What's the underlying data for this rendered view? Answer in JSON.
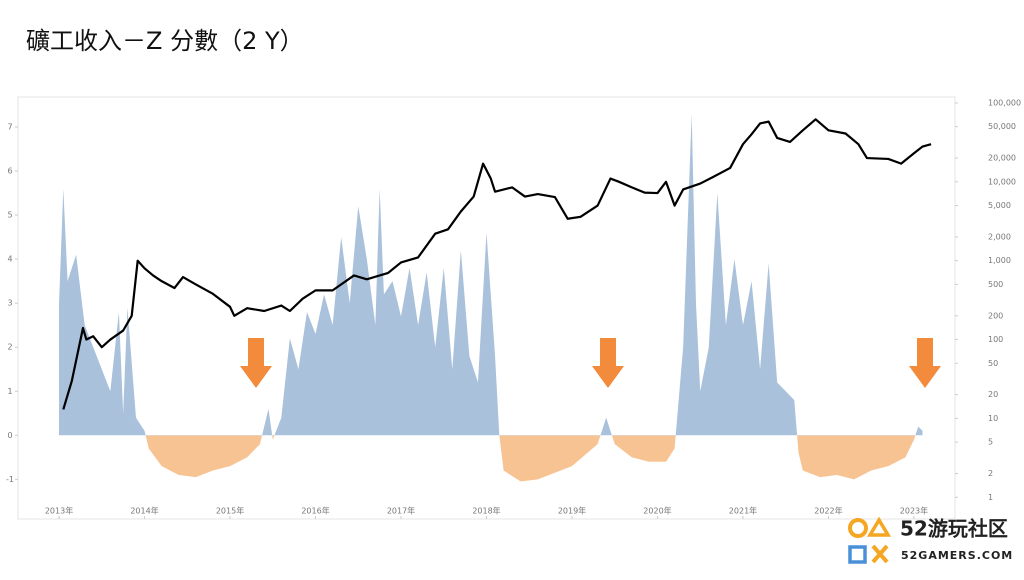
{
  "chart_data": {
    "type": "area-line",
    "title": "礦工收入－Z 分數（2 Y）",
    "xlim": [
      2012.52,
      2023.48
    ],
    "xticks": [
      {
        "value": 2013,
        "label": "2013年"
      },
      {
        "value": 2014,
        "label": "2014年"
      },
      {
        "value": 2015,
        "label": "2015年"
      },
      {
        "value": 2016,
        "label": "2016年"
      },
      {
        "value": 2017,
        "label": "2017年"
      },
      {
        "value": 2018,
        "label": "2018年"
      },
      {
        "value": 2019,
        "label": "2019年"
      },
      {
        "value": 2020,
        "label": "2020年"
      },
      {
        "value": 2021,
        "label": "2021年"
      },
      {
        "value": 2022,
        "label": "2022年"
      },
      {
        "value": 2023,
        "label": "2023年"
      }
    ],
    "ylim": [
      -1.9,
      7.68
    ],
    "yticks": [
      -1,
      0,
      1,
      2,
      3,
      4,
      5,
      6,
      7
    ],
    "y2lim": [
      0.53,
      119000
    ],
    "y2scale": "log",
    "y2ticks": [
      1,
      2,
      5,
      10,
      20,
      50,
      100,
      200,
      500,
      {
        "value": 1000,
        "label": "1,000"
      },
      {
        "value": 2000,
        "label": "2,000"
      },
      {
        "value": 5000,
        "label": "5,000"
      },
      {
        "value": 10000,
        "label": "10,000"
      },
      {
        "value": 20000,
        "label": "20,000"
      },
      {
        "value": 50000,
        "label": "50,000"
      },
      {
        "value": 100000,
        "label": "100,000"
      }
    ],
    "grid": false,
    "series": [
      {
        "type": "area",
        "positive_color": "#a9c1da",
        "negative_color": "#f7c393",
        "x": [
          2013.0,
          2013.05,
          2013.1,
          2013.2,
          2013.3,
          2013.4,
          2013.5,
          2013.6,
          2013.7,
          2013.75,
          2013.8,
          2013.9,
          2014.0,
          2014.05,
          2014.2,
          2014.4,
          2014.6,
          2014.8,
          2015.0,
          2015.2,
          2015.35,
          2015.45,
          2015.5,
          2015.6,
          2015.7,
          2015.8,
          2015.9,
          2016.0,
          2016.1,
          2016.2,
          2016.3,
          2016.4,
          2016.5,
          2016.6,
          2016.7,
          2016.75,
          2016.8,
          2016.9,
          2017.0,
          2017.1,
          2017.2,
          2017.3,
          2017.4,
          2017.5,
          2017.6,
          2017.7,
          2017.8,
          2017.9,
          2018.0,
          2018.1,
          2018.15,
          2018.2,
          2018.4,
          2018.6,
          2018.8,
          2019.0,
          2019.3,
          2019.4,
          2019.5,
          2019.7,
          2019.9,
          2020.1,
          2020.2,
          2020.3,
          2020.4,
          2020.45,
          2020.5,
          2020.6,
          2020.7,
          2020.8,
          2020.9,
          2021.0,
          2021.1,
          2021.2,
          2021.3,
          2021.4,
          2021.5,
          2021.6,
          2021.65,
          2021.7,
          2021.9,
          2022.1,
          2022.3,
          2022.5,
          2022.7,
          2022.9,
          2023.0,
          2023.05,
          2023.1
        ],
        "values": [
          3.0,
          5.6,
          3.5,
          4.1,
          2.5,
          2.0,
          1.5,
          1.0,
          2.8,
          0.5,
          2.9,
          0.4,
          0.1,
          -0.3,
          -0.7,
          -0.9,
          -0.95,
          -0.8,
          -0.7,
          -0.5,
          -0.2,
          0.6,
          -0.1,
          0.4,
          2.2,
          1.5,
          2.8,
          2.3,
          3.2,
          2.5,
          4.5,
          3.0,
          5.2,
          4.0,
          2.5,
          5.6,
          3.2,
          3.5,
          2.7,
          3.8,
          2.5,
          3.7,
          2.0,
          3.8,
          1.5,
          4.2,
          1.8,
          1.2,
          4.6,
          1.8,
          0.0,
          -0.8,
          -1.05,
          -1.0,
          -0.85,
          -0.7,
          -0.2,
          0.4,
          -0.2,
          -0.5,
          -0.6,
          -0.6,
          -0.3,
          2.0,
          7.3,
          3.0,
          1.0,
          2.0,
          5.5,
          2.5,
          4.0,
          2.5,
          3.5,
          1.5,
          3.9,
          1.2,
          1.0,
          0.8,
          -0.4,
          -0.8,
          -0.95,
          -0.9,
          -1.0,
          -0.8,
          -0.7,
          -0.5,
          -0.1,
          0.2,
          0.1
        ]
      },
      {
        "type": "line",
        "axis": "y2",
        "color": "#000000",
        "x": [
          2013.05,
          2013.15,
          2013.28,
          2013.32,
          2013.4,
          2013.5,
          2013.6,
          2013.75,
          2013.85,
          2013.92,
          2014.0,
          2014.1,
          2014.2,
          2014.35,
          2014.45,
          2014.6,
          2014.8,
          2015.0,
          2015.05,
          2015.2,
          2015.4,
          2015.6,
          2015.7,
          2015.85,
          2016.0,
          2016.2,
          2016.45,
          2016.6,
          2016.85,
          2017.0,
          2017.2,
          2017.4,
          2017.55,
          2017.7,
          2017.85,
          2017.96,
          2018.05,
          2018.1,
          2018.3,
          2018.45,
          2018.6,
          2018.8,
          2018.95,
          2019.1,
          2019.3,
          2019.45,
          2019.55,
          2019.7,
          2019.85,
          2020.0,
          2020.1,
          2020.2,
          2020.3,
          2020.5,
          2020.65,
          2020.85,
          2021.0,
          2021.1,
          2021.2,
          2021.3,
          2021.4,
          2021.55,
          2021.7,
          2021.85,
          2022.0,
          2022.2,
          2022.35,
          2022.45,
          2022.7,
          2022.85,
          2023.0,
          2023.1,
          2023.2
        ],
        "values": [
          13,
          30,
          140,
          100,
          110,
          80,
          100,
          130,
          200,
          1000,
          800,
          650,
          550,
          450,
          620,
          500,
          380,
          260,
          200,
          250,
          230,
          270,
          230,
          330,
          420,
          420,
          650,
          580,
          700,
          950,
          1100,
          2200,
          2500,
          4200,
          6500,
          17000,
          11000,
          7500,
          8500,
          6500,
          7000,
          6400,
          3400,
          3600,
          5000,
          11000,
          10000,
          8500,
          7300,
          7200,
          10000,
          5000,
          8000,
          9500,
          11500,
          15000,
          30000,
          40000,
          55000,
          58000,
          36000,
          32000,
          45000,
          62000,
          45000,
          41000,
          30000,
          20000,
          19500,
          17000,
          23000,
          28000,
          30000
        ]
      }
    ]
  },
  "watermark": {
    "title": "52游玩社区",
    "subtitle": "52GAMERS.COM"
  }
}
